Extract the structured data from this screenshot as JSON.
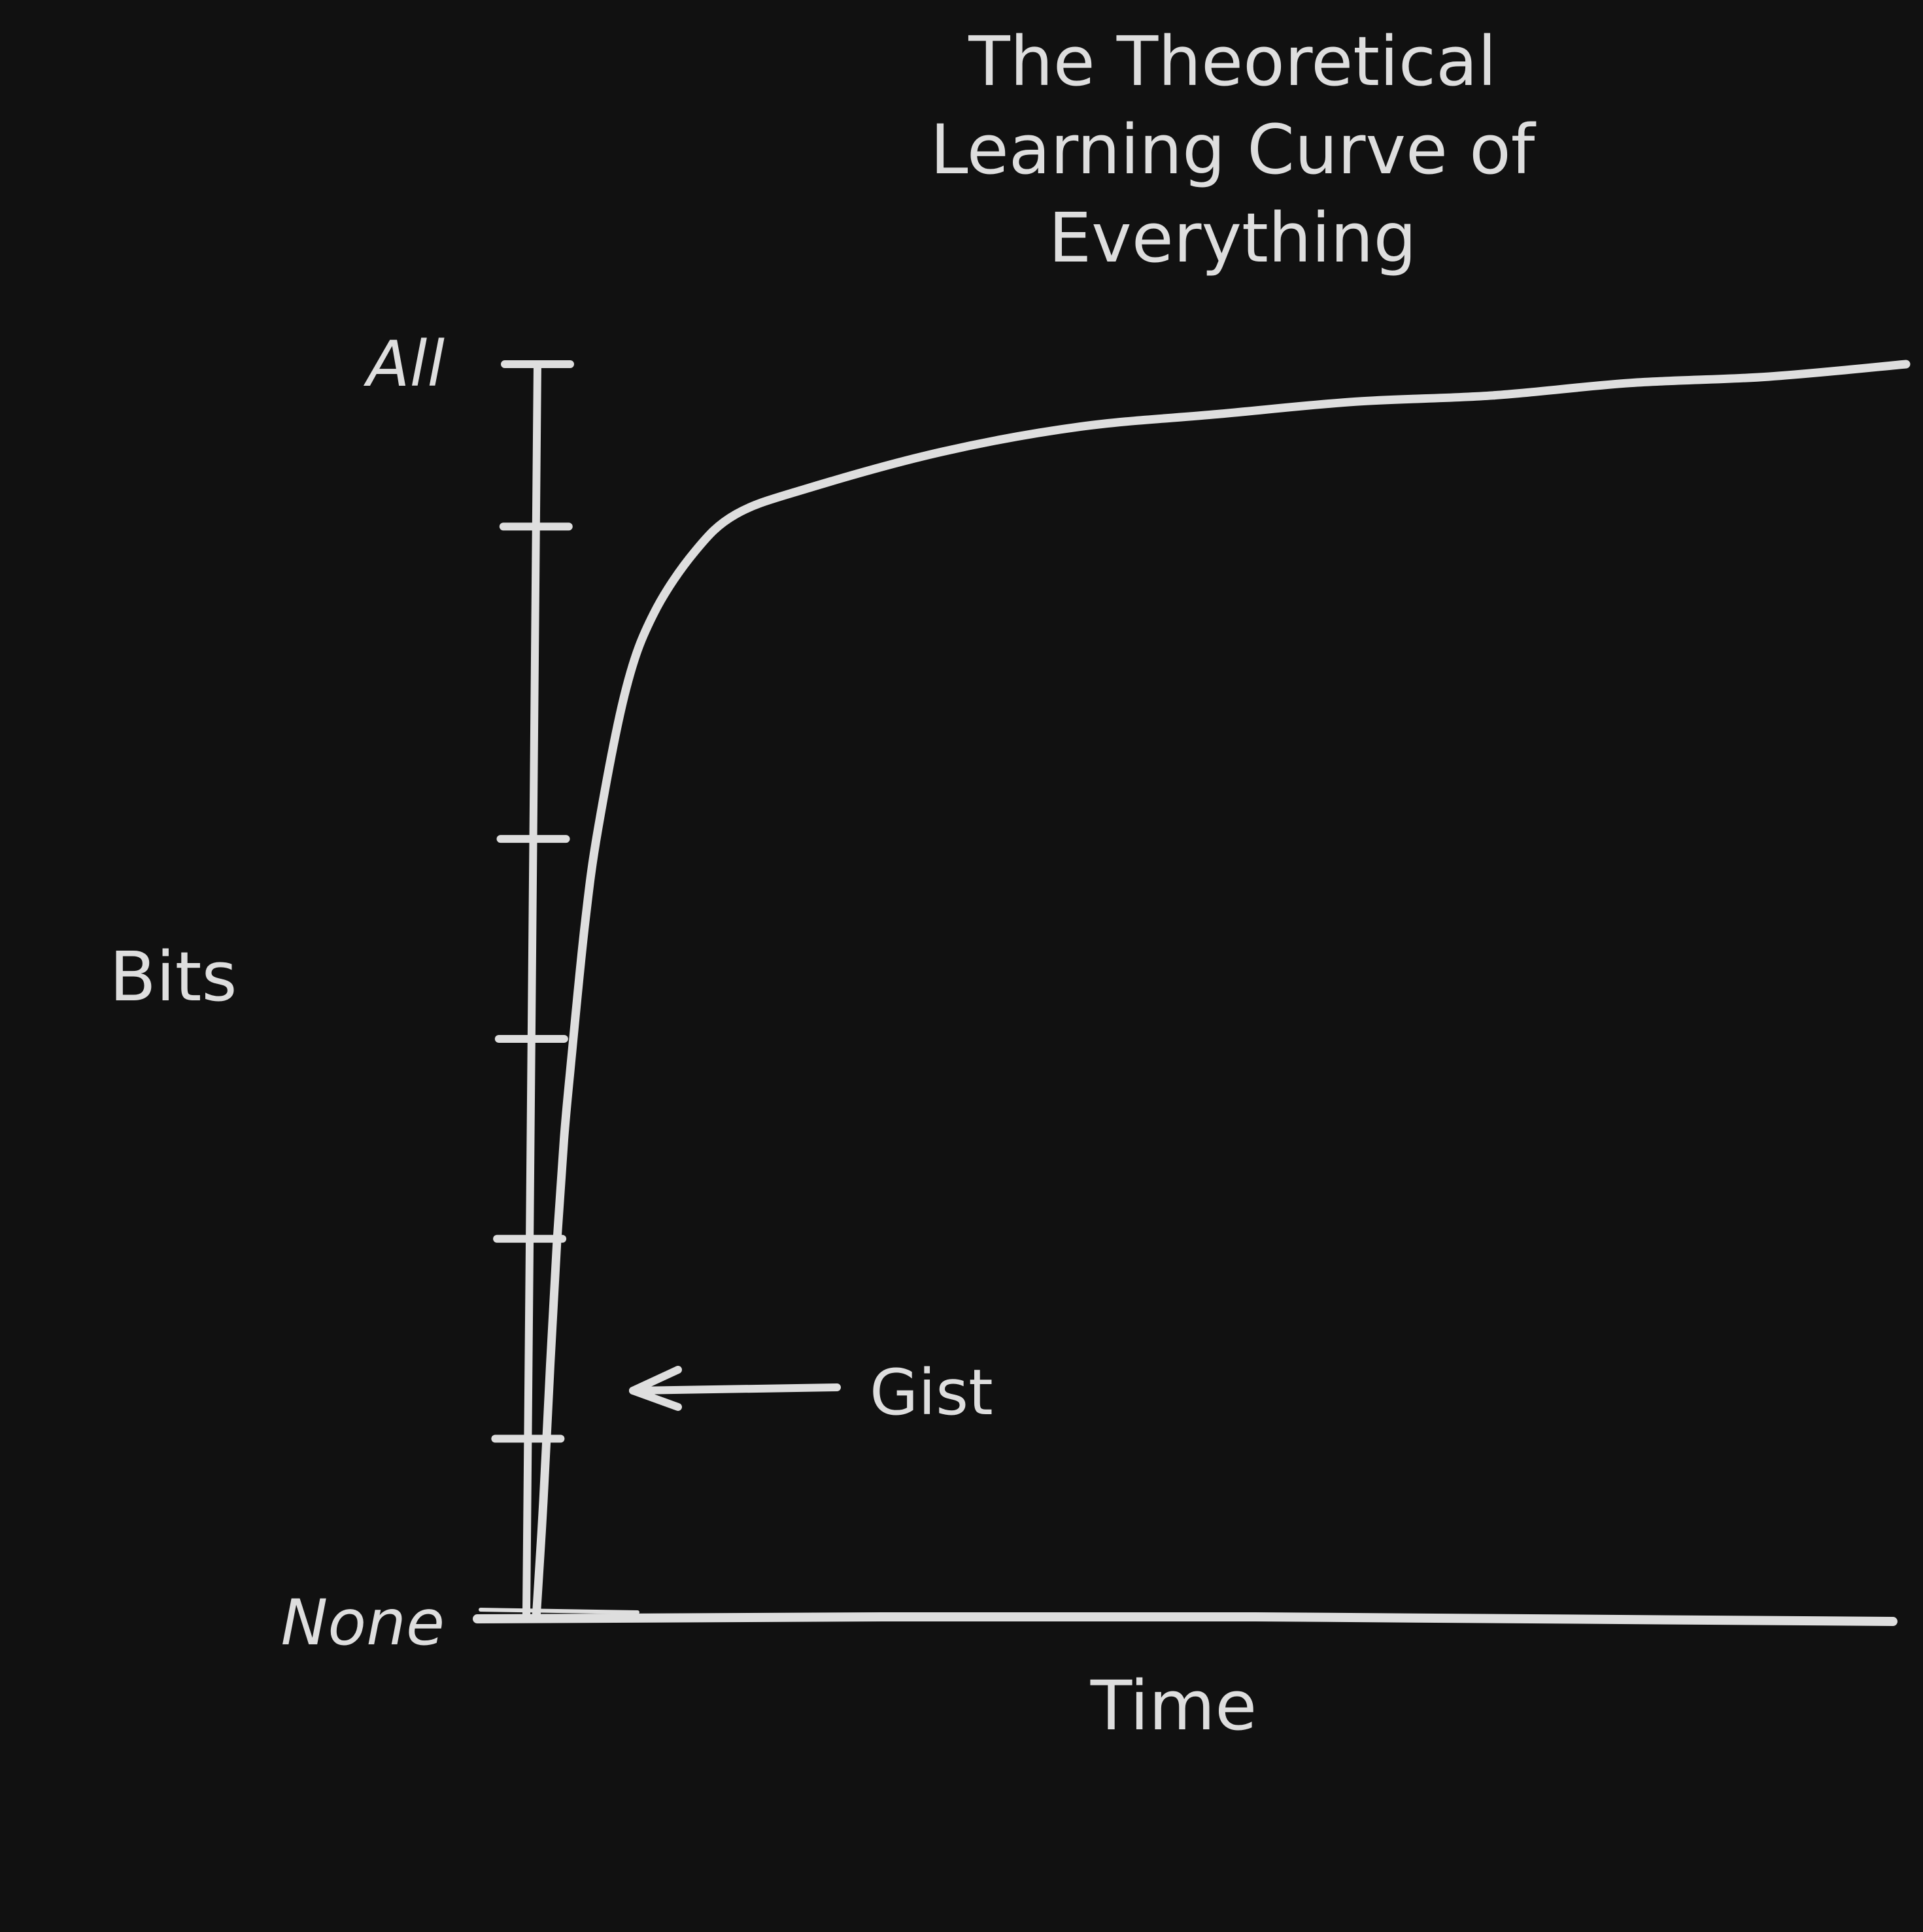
{
  "chart_data": {
    "type": "line",
    "title": "The Theoretical Learning Curve of Everything",
    "title_lines": [
      "The Theoretical",
      "Learning Curve of",
      "Everything"
    ],
    "xlabel": "Time",
    "ylabel": "Bits",
    "y_tick_labels": {
      "top": "All",
      "bottom": "None"
    },
    "y_ticks": [
      0,
      0.14,
      0.3,
      0.46,
      0.62,
      0.87,
      1.0
    ],
    "xlim": [
      0,
      1
    ],
    "ylim": [
      0,
      1
    ],
    "grid": false,
    "series": [
      {
        "x": [
          0.005,
          0.01,
          0.015,
          0.02,
          0.025,
          0.03,
          0.04,
          0.05,
          0.07,
          0.09,
          0.12,
          0.15,
          0.2,
          0.3,
          0.4,
          0.5,
          0.6,
          0.7,
          0.8,
          0.9,
          1.0
        ],
        "y": [
          0.0,
          0.09,
          0.2,
          0.3,
          0.38,
          0.44,
          0.55,
          0.63,
          0.74,
          0.8,
          0.85,
          0.88,
          0.9,
          0.93,
          0.95,
          0.96,
          0.97,
          0.975,
          0.985,
          0.99,
          1.0
        ]
      }
    ],
    "annotations": [
      {
        "text": "Gist",
        "y": 0.17,
        "arrow": "points-left-to-curve"
      }
    ]
  },
  "colors": {
    "background": "#111111",
    "ink": "#dedede"
  }
}
